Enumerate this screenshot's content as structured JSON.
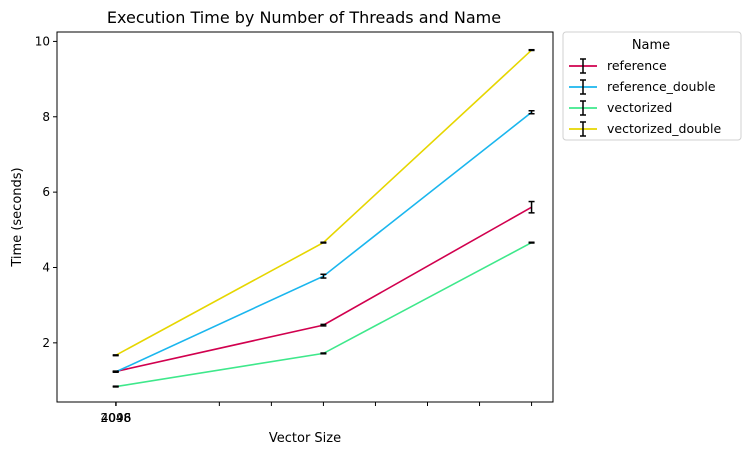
{
  "chart_data": {
    "type": "line",
    "title": "Execution Time by Number of Threads and Name",
    "xlabel": "Vector Size",
    "ylabel": "Time (seconds)",
    "x": [
      2048,
      1000000,
      2000000
    ],
    "xlim": [
      -280000,
      2103000
    ],
    "ylim": [
      0.43,
      10.25
    ],
    "x_ticks": [
      2048,
      4096
    ],
    "x_ticks_unlabeled": [
      500000,
      750000,
      1000000,
      1250000,
      1500000,
      1750000,
      2000000
    ],
    "y_ticks": [
      2,
      4,
      6,
      8,
      10
    ],
    "grid": false,
    "legend": {
      "title": "Name",
      "placement": "outside-top-right"
    },
    "series": [
      {
        "name": "reference",
        "color": "#d1004e",
        "values": [
          1.24,
          2.47,
          5.6
        ],
        "errors": [
          0.01,
          0.02,
          0.15
        ]
      },
      {
        "name": "reference_double",
        "color": "#1ab6ee",
        "values": [
          1.23,
          3.77,
          8.12
        ],
        "errors": [
          0.01,
          0.05,
          0.04
        ]
      },
      {
        "name": "vectorized",
        "color": "#3ee88b",
        "values": [
          0.84,
          1.72,
          4.66
        ],
        "errors": [
          0.01,
          0.01,
          0.01
        ]
      },
      {
        "name": "vectorized_double",
        "color": "#e6d600",
        "values": [
          1.67,
          4.66,
          9.77
        ],
        "errors": [
          0.01,
          0.01,
          0.01
        ]
      }
    ]
  }
}
